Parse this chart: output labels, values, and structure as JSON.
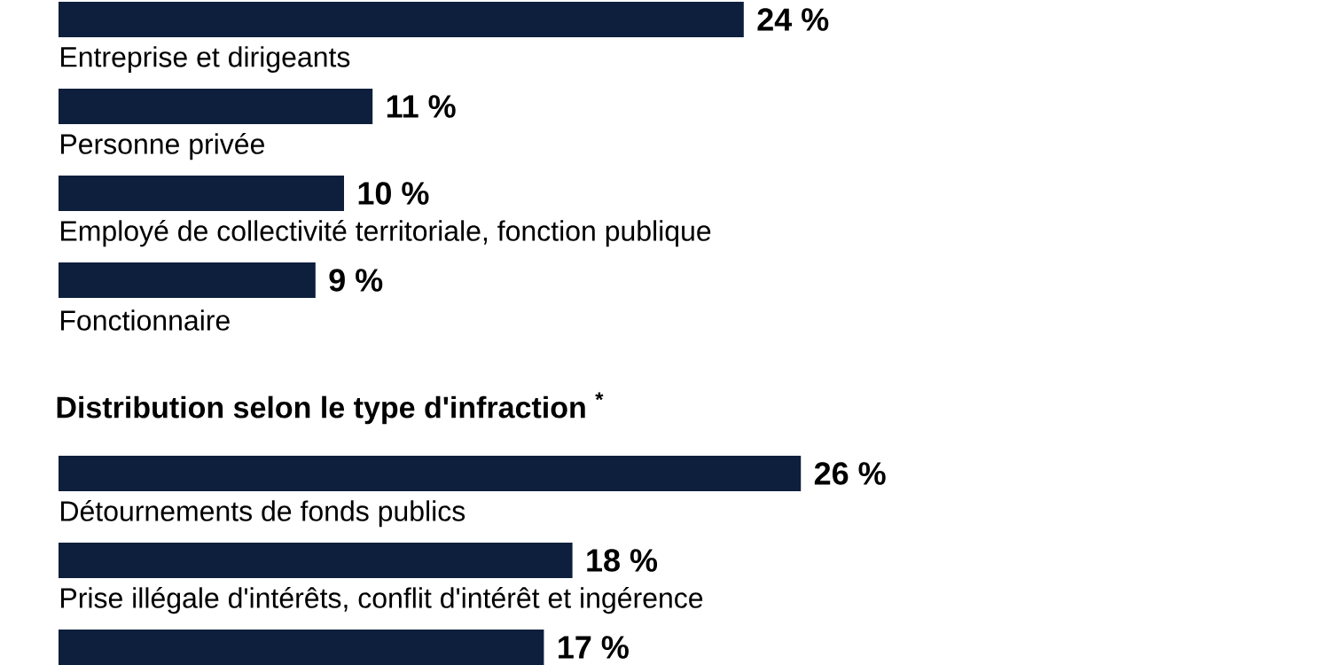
{
  "chart_data": [
    {
      "type": "bar",
      "orientation": "horizontal",
      "categories": [
        "Entreprise et dirigeants",
        "Personne privée",
        "Employé de collectivité territoriale, fonction publique",
        "Fonctionnaire"
      ],
      "values": [
        24,
        11,
        10,
        9
      ],
      "value_labels": [
        "24 %",
        "11 %",
        "10 %",
        "9 %"
      ],
      "color": "#0d1f3c"
    },
    {
      "type": "bar",
      "orientation": "horizontal",
      "title": "Distribution selon le type d'infraction $^{*}$",
      "categories": [
        "Détournements de fonds publics",
        "Prise illégale d'intérêts, conflit d'intérêt et ingérence",
        null
      ],
      "values": [
        26,
        18,
        17
      ],
      "value_labels": [
        "26 %",
        "18 %",
        "17 %"
      ],
      "color": "#0d1f3c"
    }
  ]
}
